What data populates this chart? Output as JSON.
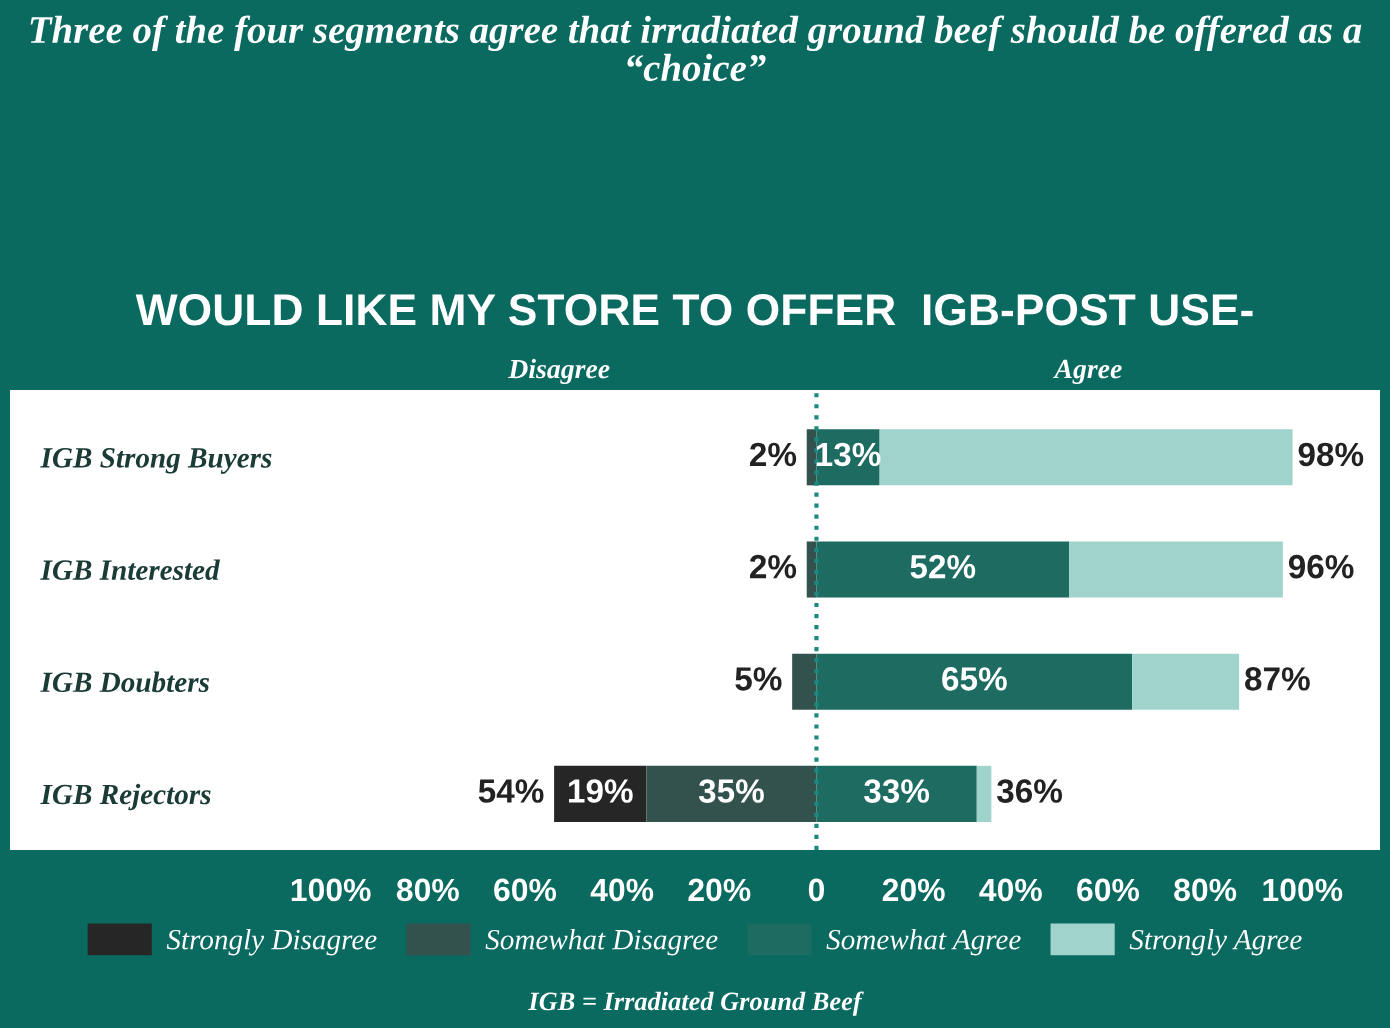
{
  "chart_data": {
    "type": "bar",
    "orientation": "horizontal",
    "title": "Three of the four segments agree that irradiated ground beef should be offered as a “choice”",
    "subtitle": "WOULD LIKE MY STORE TO OFFER  IGB-POST USE-",
    "categories": [
      "IGB Strong Buyers",
      "IGB Interested",
      "IGB Doubters",
      "IGB Rejectors"
    ],
    "series": [
      {
        "name": "Strongly Disagree",
        "color": "#262626",
        "base": [
          null,
          null,
          null,
          -54
        ],
        "values": [
          null,
          null,
          null,
          19
        ],
        "value_labels": [
          null,
          null,
          null,
          "19%"
        ]
      },
      {
        "name": "Somewhat Disagree",
        "color": "#34524d",
        "base": [
          -2,
          -2,
          -5,
          -35
        ],
        "values": [
          2,
          2,
          5,
          35
        ],
        "value_labels": [
          null,
          null,
          null,
          "35%"
        ]
      },
      {
        "name": "Somewhat Agree",
        "color": "#1d6b61",
        "base": [
          0,
          0,
          0,
          0
        ],
        "values": [
          13,
          52,
          65,
          33
        ],
        "value_labels": [
          "13%",
          "52%",
          "65%",
          "33%"
        ]
      },
      {
        "name": "Strongly Agree",
        "color": "#9fd3cb",
        "base": [
          13,
          52,
          65,
          33
        ],
        "values": [
          85,
          44,
          22,
          3
        ]
      }
    ],
    "xlim": [
      -166,
      116
    ],
    "xticks": [
      {
        "value": -100,
        "label": "100%"
      },
      {
        "value": -80,
        "label": "80%"
      },
      {
        "value": -60,
        "label": "60%"
      },
      {
        "value": -40,
        "label": "40%"
      },
      {
        "value": -20,
        "label": "20%"
      },
      0,
      {
        "value": 20,
        "label": "20%"
      },
      {
        "value": 40,
        "label": "40%"
      },
      {
        "value": 60,
        "label": "60%"
      },
      {
        "value": 80,
        "label": "80%"
      },
      {
        "value": 100,
        "label": "100%"
      }
    ],
    "ref_lines": [
      {
        "axis": "x",
        "value": 0,
        "label": null,
        "color": "#1a8a7e",
        "line_style": "dotted"
      }
    ],
    "annotations": [
      {
        "text": "2%",
        "x": -2,
        "y": "IGB Strong Buyers"
      },
      {
        "text": "98%",
        "x": 98,
        "y": "IGB Strong Buyers"
      },
      {
        "text": "2%",
        "x": -2,
        "y": "IGB Interested"
      },
      {
        "text": "96%",
        "x": 96,
        "y": "IGB Interested"
      },
      {
        "text": "5%",
        "x": -5,
        "y": "IGB Doubters"
      },
      {
        "text": "87%",
        "x": 87,
        "y": "IGB Doubters"
      },
      {
        "text": "54%",
        "x": -54,
        "y": "IGB Rejectors"
      },
      {
        "text": "36%",
        "x": 36,
        "y": "IGB Rejectors"
      },
      "Disagree",
      "Agree",
      "IGB = Irradiated Ground Beef"
    ],
    "legend": "bottom"
  }
}
